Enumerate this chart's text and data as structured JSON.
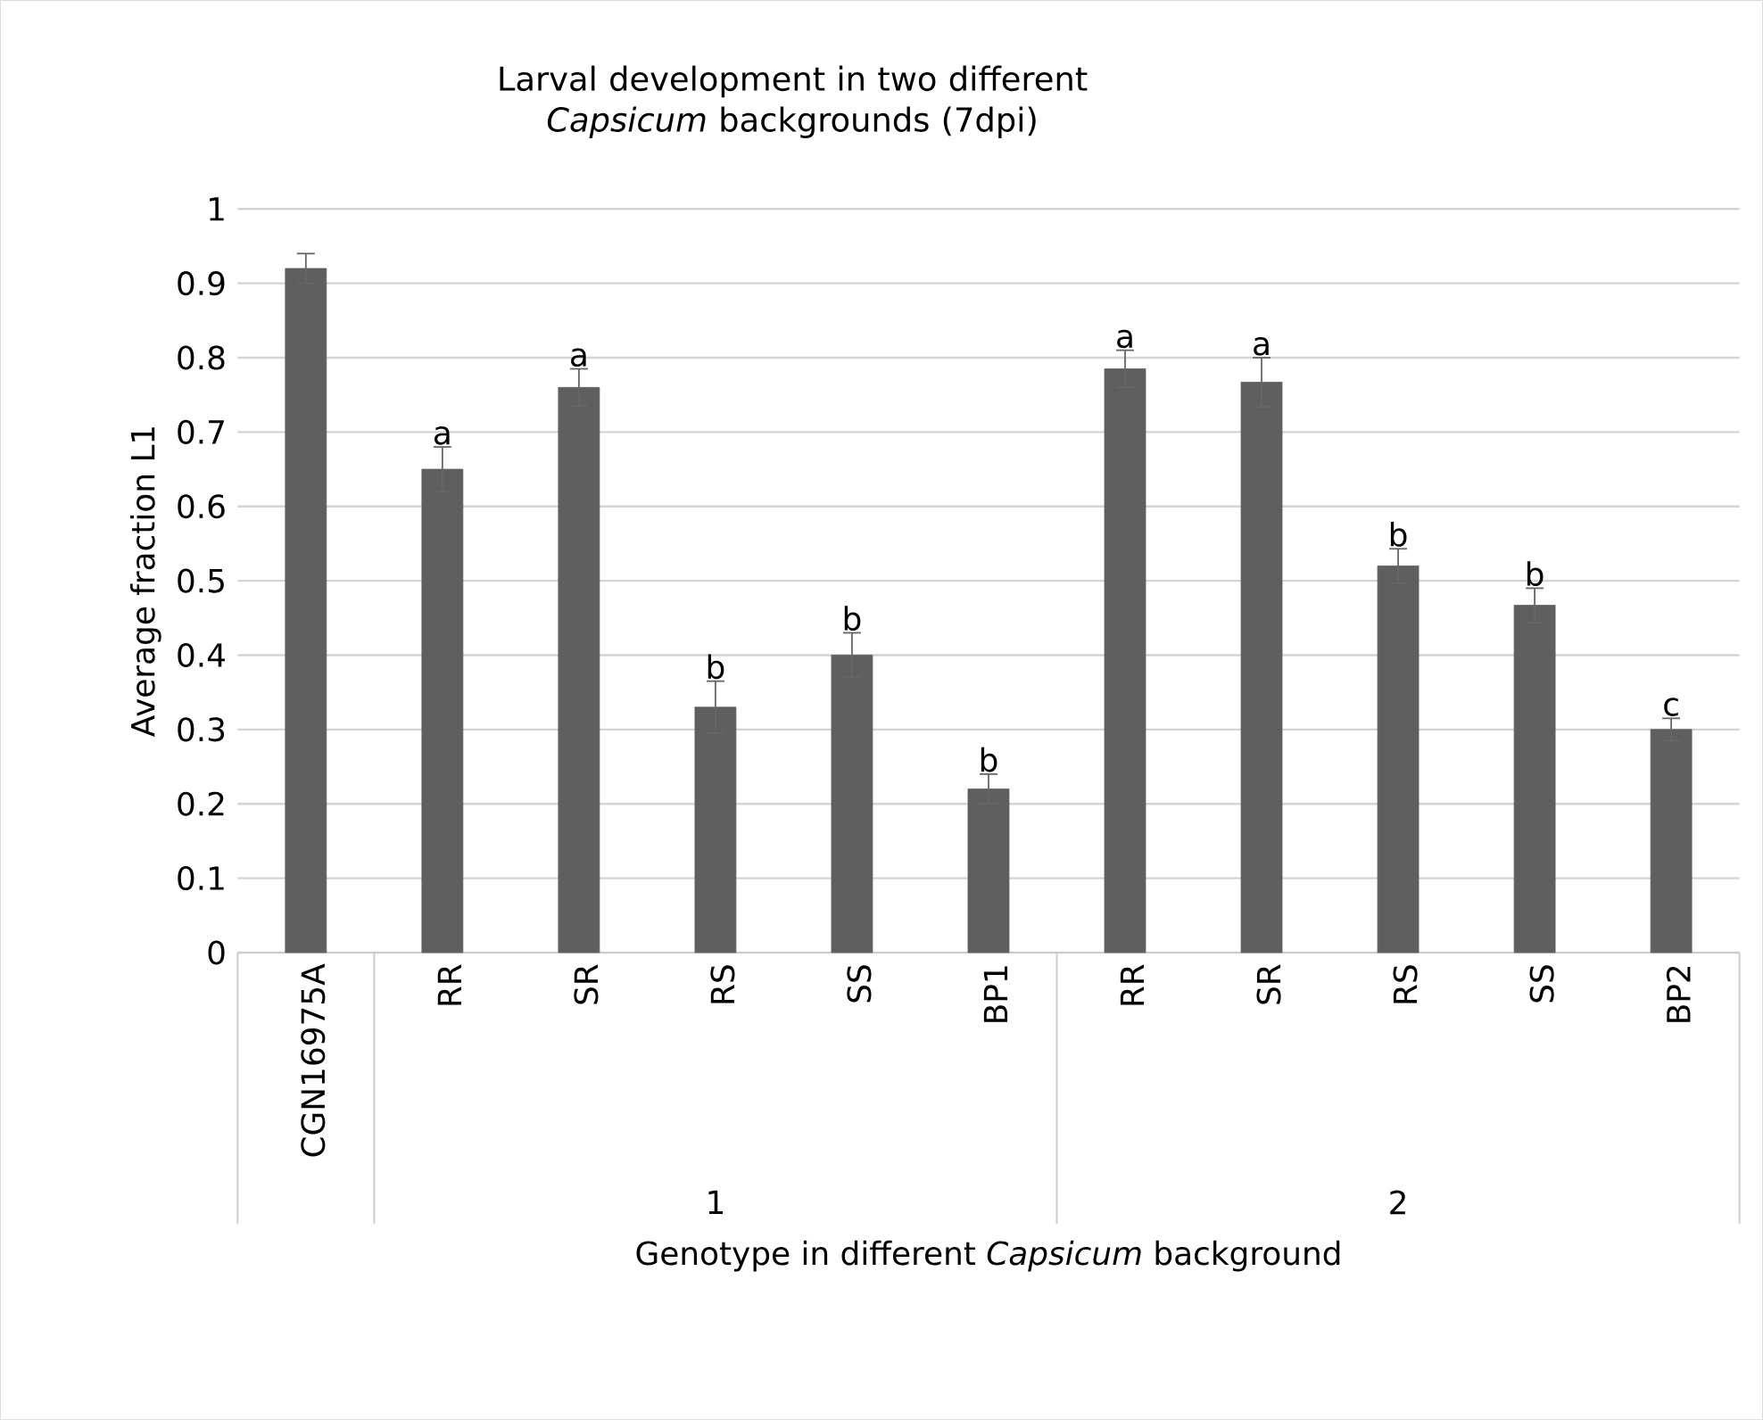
{
  "chart_data": {
    "type": "bar",
    "title": "Larval development in two different *Capsicum* backgrounds (7dpi)",
    "xlabel": "Genotype in different *Capsicum* background",
    "ylabel": "Average fraction L1",
    "categories": [
      "CGN16975A",
      "RR",
      "SR",
      "RS",
      "SS",
      "BP1",
      "RR",
      "SR",
      "RS",
      "SS",
      "BP2"
    ],
    "values": [
      0.92,
      0.65,
      0.76,
      0.33,
      0.4,
      0.22,
      0.785,
      0.767,
      0.52,
      0.467,
      0.3
    ],
    "errors": [
      0.02,
      0.03,
      0.025,
      0.035,
      0.03,
      0.02,
      0.025,
      0.033,
      0.023,
      0.023,
      0.015
    ],
    "value_labels": [
      null,
      "a",
      "a",
      "b",
      "b",
      "b",
      "a",
      "a",
      "b",
      "b",
      "c"
    ],
    "annotations": [
      "1",
      "2"
    ],
    "color": "#5f5f5f",
    "ylim": [
      0,
      1
    ],
    "yticks": [
      0,
      0.1,
      0.2,
      0.3,
      0.4,
      0.5,
      0.6,
      0.7,
      0.8,
      0.9,
      1
    ],
    "grid": "y"
  }
}
